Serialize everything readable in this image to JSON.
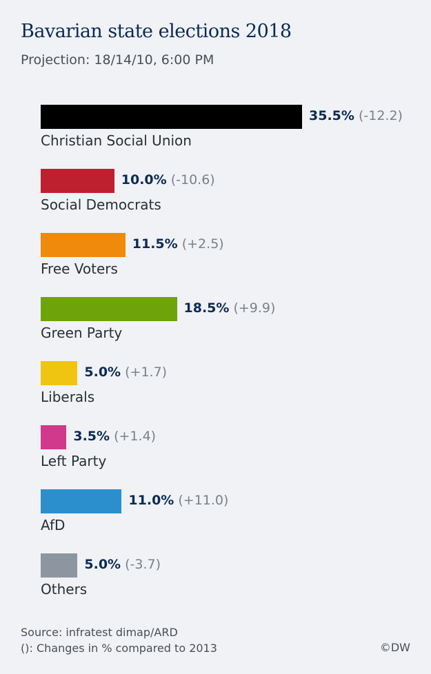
{
  "header": {
    "title": "Bavarian state elections 2018",
    "subtitle": "Projection: 18/14/10, 6:00 PM"
  },
  "chart_data": {
    "type": "bar",
    "orientation": "horizontal",
    "title": "Bavarian state elections 2018",
    "subtitle": "Projection: 18/14/10, 6:00 PM",
    "categories": [
      "Christian Social Union",
      "Social Democrats",
      "Free Voters",
      "Green Party",
      "Liberals",
      "Left Party",
      "AfD",
      "Others"
    ],
    "values": [
      35.5,
      10.0,
      11.5,
      18.5,
      5.0,
      3.5,
      11.0,
      5.0
    ],
    "value_labels": [
      "35.5%",
      "10.0%",
      "11.5%",
      "18.5%",
      "5.0%",
      "3.5%",
      "11.0%",
      "5.0%"
    ],
    "changes": [
      "(-12.2)",
      "(-10.6)",
      "(+2.5)",
      "(+9.9)",
      "(+1.7)",
      "(+1.4)",
      "(+11.0)",
      "(-3.7)"
    ],
    "colors": [
      "#000000",
      "#be2030",
      "#ef8a0c",
      "#6fa30a",
      "#efc512",
      "#d1398d",
      "#2b8fcd",
      "#8d96a0"
    ],
    "grid": false,
    "legend": "none"
  },
  "footer": {
    "source": "Source: infratest dimap/ARD",
    "note": "(): Changes in % compared to 2013",
    "copyright": "©DW"
  }
}
